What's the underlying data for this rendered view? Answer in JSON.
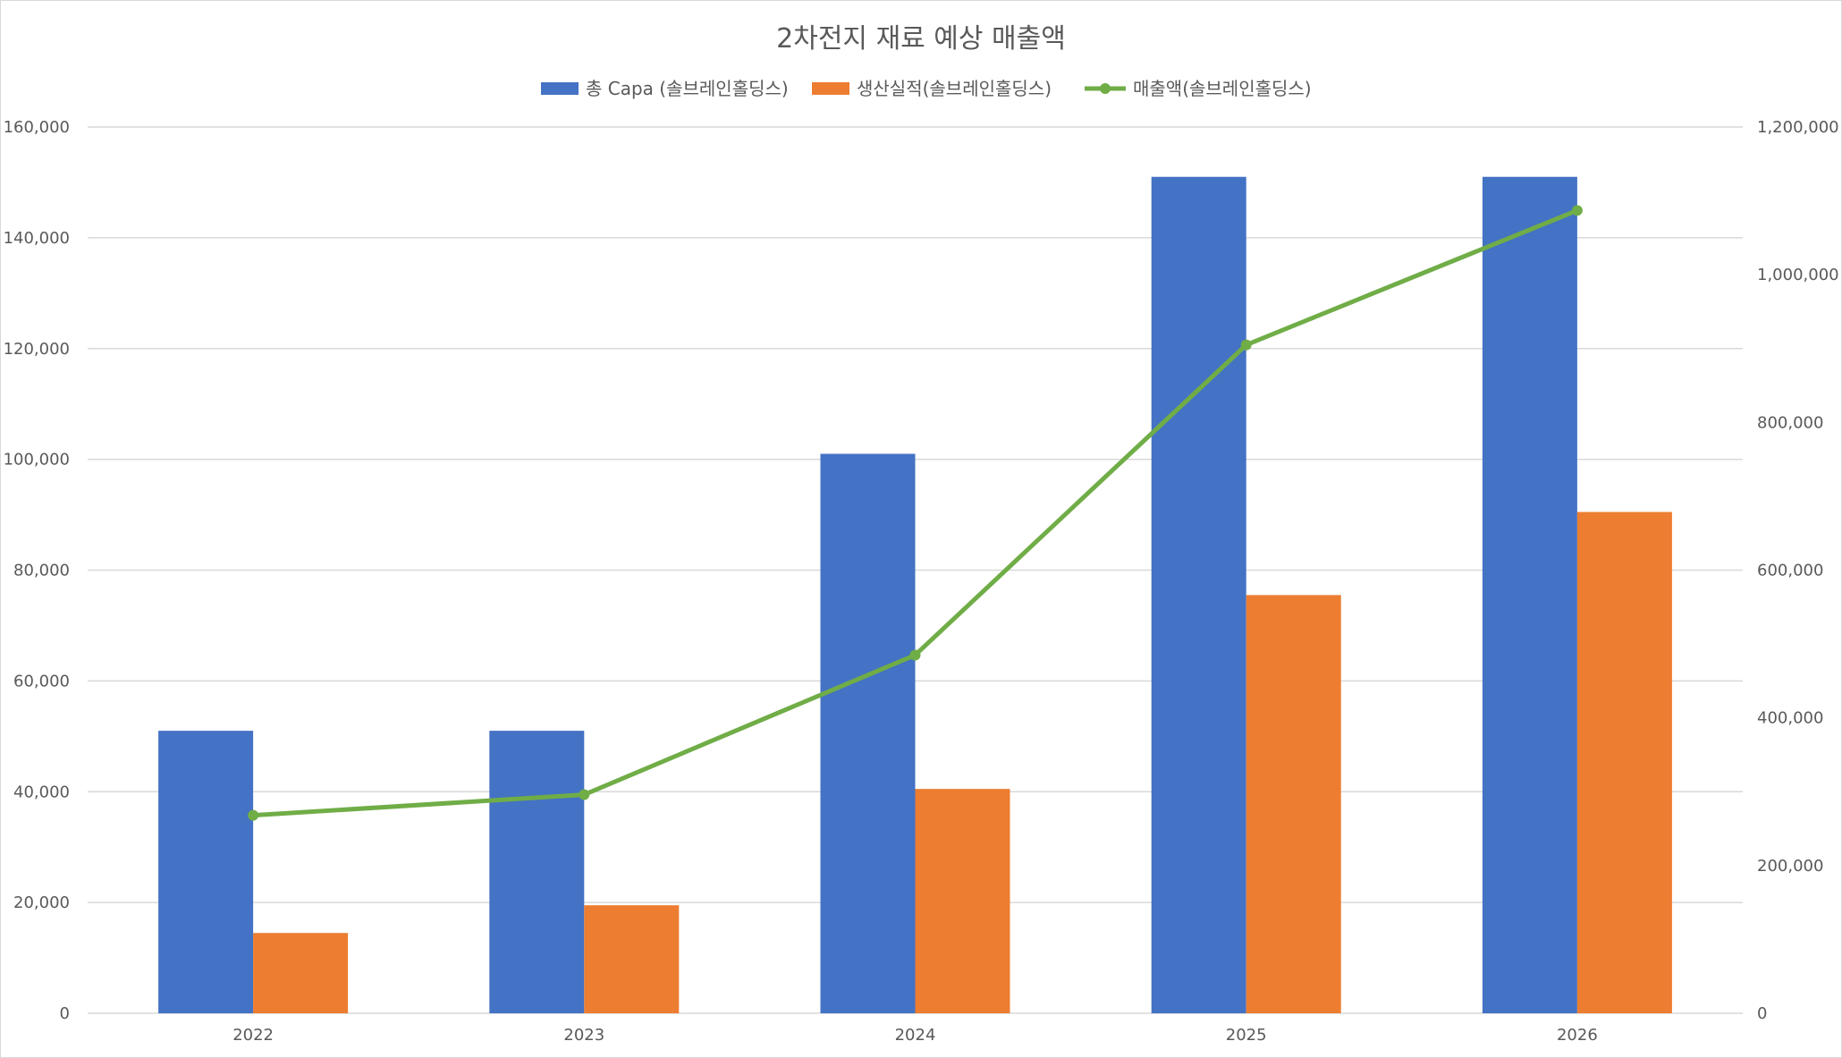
{
  "chart_data": {
    "type": "bar",
    "title": "2차전지 재료 예상 매출액",
    "categories": [
      "2022",
      "2023",
      "2024",
      "2025",
      "2026"
    ],
    "series": [
      {
        "name": "총 Capa (솔브레인홀딩스)",
        "type": "bar",
        "axis": "left",
        "color": "#4472C4",
        "values": [
          51000,
          51000,
          101000,
          151000,
          151000
        ]
      },
      {
        "name": "생산실적(솔브레인홀딩스)",
        "type": "bar",
        "axis": "left",
        "color": "#ED7D31",
        "values": [
          14500,
          19500,
          40500,
          75500,
          90500
        ]
      },
      {
        "name": "매출액(솔브레인홀딩스)",
        "type": "line",
        "axis": "right",
        "color": "#70AD47",
        "values": [
          268000,
          296000,
          485000,
          905000,
          1087000
        ]
      }
    ],
    "y_left": {
      "min": 0,
      "max": 160000,
      "ticks": [
        "0",
        "20,000",
        "40,000",
        "60,000",
        "80,000",
        "100,000",
        "120,000",
        "140,000",
        "160,000"
      ]
    },
    "y_right": {
      "min": 0,
      "max": 1200000,
      "ticks": [
        "0",
        "200,000",
        "400,000",
        "600,000",
        "800,000",
        "1,000,000",
        "1,200,000"
      ]
    },
    "grid": true,
    "legend_position": "top"
  }
}
